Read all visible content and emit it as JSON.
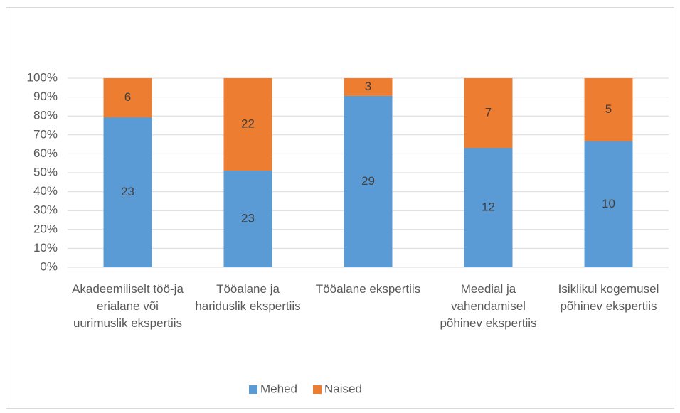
{
  "chart_data": {
    "type": "bar",
    "stacking": "percent",
    "categories": [
      "Akadeemiliselt töö-ja erialane või uurimuslik ekspertiis",
      "Tööalane ja hariduslik ekspertiis",
      "Tööalane ekspertiis",
      "Meedial ja vahendamisel põhinev ekspertiis",
      "Isiklikul kogemusel põhinev ekspertiis"
    ],
    "series": [
      {
        "name": "Mehed",
        "color": "#5b9bd5",
        "values": [
          23,
          23,
          29,
          12,
          10
        ]
      },
      {
        "name": "Naised",
        "color": "#ed7d31",
        "values": [
          6,
          22,
          3,
          7,
          5
        ]
      }
    ],
    "ylim": [
      0,
      100
    ],
    "yticks": [
      {
        "value": 0,
        "label": "0%"
      },
      {
        "value": 10,
        "label": "10%"
      },
      {
        "value": 20,
        "label": "20%"
      },
      {
        "value": 30,
        "label": "30%"
      },
      {
        "value": 40,
        "label": "40%"
      },
      {
        "value": 50,
        "label": "50%"
      },
      {
        "value": 60,
        "label": "60%"
      },
      {
        "value": 70,
        "label": "70%"
      },
      {
        "value": 80,
        "label": "80%"
      },
      {
        "value": 90,
        "label": "90%"
      },
      {
        "value": 100,
        "label": "100%"
      }
    ],
    "grid": true,
    "legend": "bottom"
  }
}
